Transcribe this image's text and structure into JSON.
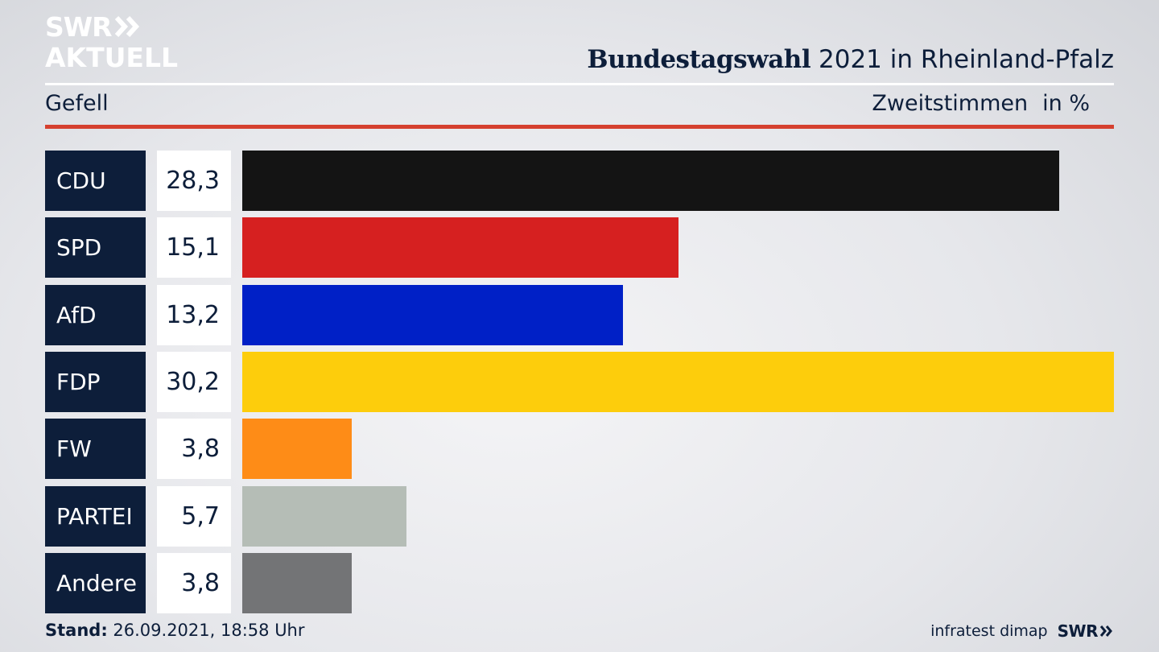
{
  "brand": {
    "line1": "SWR",
    "line2": "AKTUELL",
    "footer_logo": "SWR",
    "arrow_icon": "double-chevron-right-icon"
  },
  "header": {
    "title_bold": "Bundestagswahl",
    "title_rest": "2021 in Rheinland-Pfalz",
    "place": "Gefell",
    "measure": "Zweitstimmen",
    "unit": "in %"
  },
  "footer": {
    "stand_label": "Stand:",
    "stand_value": "26.09.2021, 18:58 Uhr",
    "source": "infratest dimap"
  },
  "colors": {
    "navy": "#0d1e3a",
    "accent_red": "#d5402f"
  },
  "chart_data": {
    "type": "bar",
    "orientation": "horizontal",
    "title": "Bundestagswahl 2021 in Rheinland-Pfalz",
    "xlabel": "Zweitstimmen in %",
    "ylabel": "",
    "categories": [
      "CDU",
      "SPD",
      "AfD",
      "FDP",
      "FW",
      "PARTEI",
      "Andere"
    ],
    "values": [
      28.3,
      15.1,
      13.2,
      30.2,
      3.8,
      5.7,
      3.8
    ],
    "value_labels": [
      "28,3",
      "15,1",
      "13,2",
      "30,2",
      "3,8",
      "5,7",
      "3,8"
    ],
    "colors": [
      "#141414",
      "#d62020",
      "#0020c6",
      "#fdcd0c",
      "#fe8c17",
      "#b5bdb6",
      "#737476"
    ],
    "xlim": [
      0,
      30.2
    ],
    "grid": false
  }
}
